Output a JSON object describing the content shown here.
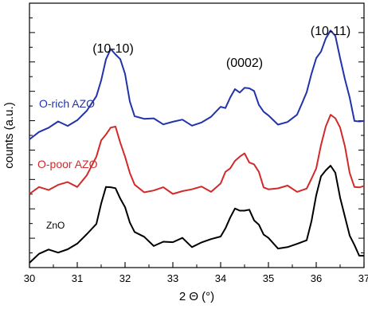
{
  "chart_data": {
    "type": "line",
    "xlabel": "2 Θ (°)",
    "ylabel": "counts (a.u.)",
    "xlim": [
      30,
      37
    ],
    "x_ticks": [
      30,
      31,
      32,
      33,
      34,
      35,
      36,
      37
    ],
    "x_tick_labels": [
      "30",
      "31",
      "32",
      "33",
      "34",
      "35",
      "36",
      "37"
    ],
    "y_ticks_shown": false,
    "grid": false,
    "annotations": [
      {
        "text": "(10-10)",
        "x": 31.75
      },
      {
        "text": "(0002)",
        "x": 34.5
      },
      {
        "text": "(10-11)",
        "x": 36.3
      }
    ],
    "series": [
      {
        "name": "O-rich AZO",
        "color": "#2233aa",
        "x": [
          30.0,
          30.2,
          30.4,
          30.6,
          30.8,
          31.0,
          31.2,
          31.4,
          31.5,
          31.6,
          31.7,
          31.8,
          31.9,
          32.0,
          32.1,
          32.2,
          32.4,
          32.6,
          32.8,
          33.0,
          33.2,
          33.4,
          33.6,
          33.8,
          34.0,
          34.1,
          34.2,
          34.3,
          34.4,
          34.5,
          34.6,
          34.7,
          34.8,
          34.9,
          35.0,
          35.2,
          35.4,
          35.6,
          35.7,
          35.8,
          35.9,
          36.0,
          36.1,
          36.2,
          36.3,
          36.4,
          36.5,
          36.6,
          36.7,
          36.8,
          36.9,
          37.0
        ],
        "y": [
          0.3,
          1.2,
          1.5,
          2.2,
          2.6,
          3.2,
          4.5,
          8.5,
          11.0,
          14.5,
          16.0,
          16.2,
          14.8,
          11.5,
          7.5,
          4.2,
          3.2,
          2.8,
          2.9,
          2.9,
          2.8,
          2.9,
          3.0,
          3.6,
          5.0,
          6.0,
          7.5,
          8.6,
          9.2,
          9.6,
          9.0,
          8.0,
          6.6,
          4.8,
          3.6,
          3.1,
          3.1,
          4.0,
          5.6,
          9.0,
          12.0,
          14.5,
          17.0,
          19.0,
          20.0,
          18.5,
          15.5,
          11.0,
          7.0,
          3.8,
          3.2,
          2.8
        ]
      },
      {
        "name": "O-poor AZO",
        "color": "#d12a2a",
        "x": [
          30.0,
          30.2,
          30.4,
          30.6,
          30.8,
          31.0,
          31.2,
          31.4,
          31.5,
          31.6,
          31.7,
          31.8,
          31.9,
          32.0,
          32.1,
          32.2,
          32.4,
          32.6,
          32.8,
          33.0,
          33.2,
          33.4,
          33.6,
          33.8,
          34.0,
          34.1,
          34.2,
          34.3,
          34.4,
          34.5,
          34.6,
          34.7,
          34.8,
          34.9,
          35.0,
          35.2,
          35.4,
          35.6,
          35.8,
          35.9,
          36.0,
          36.1,
          36.2,
          36.3,
          36.4,
          36.5,
          36.6,
          36.7,
          36.8,
          36.9,
          37.0
        ],
        "y": [
          0.0,
          1.0,
          1.6,
          2.2,
          2.3,
          2.5,
          4.5,
          8.0,
          11.0,
          13.5,
          14.5,
          14.2,
          12.0,
          8.5,
          4.5,
          1.5,
          1.1,
          1.0,
          1.2,
          1.0,
          1.1,
          1.0,
          1.1,
          1.2,
          2.5,
          4.5,
          6.5,
          7.6,
          8.0,
          8.2,
          7.5,
          6.6,
          4.5,
          2.4,
          1.5,
          1.2,
          1.3,
          1.2,
          1.4,
          3.0,
          6.5,
          11.0,
          14.5,
          16.5,
          17.0,
          14.5,
          10.0,
          5.5,
          2.0,
          1.4,
          1.2
        ]
      },
      {
        "name": "ZnO",
        "color": "#000000",
        "x": [
          30.0,
          30.2,
          30.4,
          30.6,
          30.8,
          31.0,
          31.2,
          31.4,
          31.5,
          31.6,
          31.7,
          31.8,
          31.9,
          32.0,
          32.1,
          32.2,
          32.4,
          32.6,
          32.8,
          33.0,
          33.2,
          33.4,
          33.6,
          33.8,
          34.0,
          34.1,
          34.2,
          34.3,
          34.4,
          34.5,
          34.6,
          34.7,
          34.8,
          34.9,
          35.0,
          35.2,
          35.4,
          35.6,
          35.8,
          35.9,
          36.0,
          36.1,
          36.2,
          36.3,
          36.4,
          36.5,
          36.6,
          36.7,
          36.8,
          36.9,
          37.0
        ],
        "y": [
          0.0,
          1.4,
          1.8,
          2.4,
          2.6,
          3.3,
          4.8,
          8.2,
          12.0,
          15.0,
          16.2,
          15.5,
          12.8,
          10.5,
          8.5,
          6.0,
          4.5,
          3.8,
          4.2,
          3.6,
          4.0,
          3.3,
          3.8,
          4.0,
          5.8,
          7.0,
          8.8,
          10.2,
          11.0,
          10.5,
          10.2,
          9.2,
          7.8,
          5.2,
          4.0,
          3.0,
          2.8,
          3.0,
          5.0,
          8.5,
          13.5,
          17.0,
          19.5,
          20.0,
          18.0,
          14.0,
          9.5,
          5.0,
          2.5,
          1.5,
          1.0
        ]
      }
    ]
  }
}
